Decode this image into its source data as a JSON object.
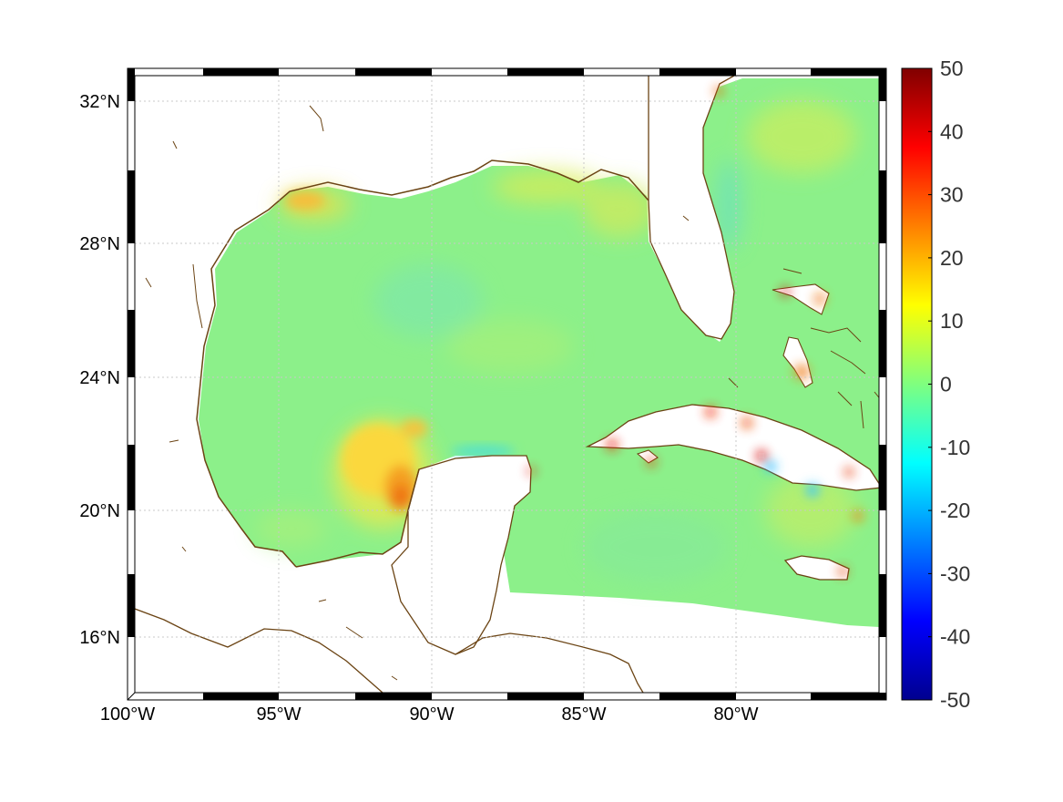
{
  "map": {
    "lon_ticks": [
      "100°W",
      "95°W",
      "90°W",
      "85°W",
      "80°W"
    ],
    "lat_ticks": [
      "32°N",
      "28°N",
      "24°N",
      "20°N",
      "16°N"
    ],
    "extent": {
      "lon": [
        -100,
        -75
      ],
      "lat": [
        14.3,
        33
      ]
    },
    "grid": true,
    "frame_style": "alternating black/white border",
    "coastline_color": "#6b4414"
  },
  "colorbar": {
    "ticks": [
      "50",
      "40",
      "30",
      "20",
      "10",
      "0",
      "-10",
      "-20",
      "-30",
      "-40",
      "-50"
    ],
    "range": [
      -50,
      50
    ],
    "colormap": "jet",
    "placement": "right"
  },
  "chart_data": {
    "type": "heatmap",
    "title": "",
    "xlabel": "",
    "ylabel": "",
    "x_ticks": [
      "100°W",
      "95°W",
      "90°W",
      "85°W",
      "80°W"
    ],
    "y_ticks": [
      "32°N",
      "28°N",
      "24°N",
      "20°N",
      "16°N"
    ],
    "xlim": [
      -100,
      -75
    ],
    "ylim": [
      14.3,
      33
    ],
    "value_range": [
      -50,
      50
    ],
    "background_value": 3,
    "features": [
      {
        "region": "Bay of Campeche (south-west Gulf)",
        "value": 20
      },
      {
        "region": "Louisiana/Texas shelf",
        "value": 15
      },
      {
        "region": "Cuba coastal spots",
        "value": 35
      },
      {
        "region": "Bahamas banks",
        "value": 30
      },
      {
        "region": "Florida east coast",
        "value": -5
      }
    ]
  }
}
